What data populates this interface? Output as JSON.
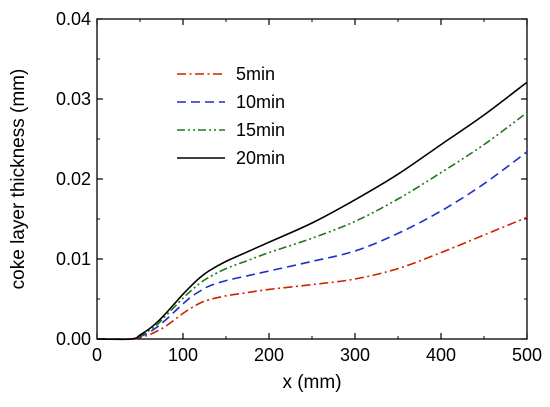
{
  "chart_data": {
    "type": "line",
    "title": "",
    "xlabel": "x (mm)",
    "ylabel": "coke layer thickness (mm)",
    "xlim": [
      0,
      500
    ],
    "ylim": [
      0,
      0.04
    ],
    "xticks": [
      0,
      100,
      200,
      300,
      400,
      500
    ],
    "xtick_labels": [
      "0",
      "100",
      "200",
      "300",
      "400",
      "500"
    ],
    "yticks": [
      0,
      0.01,
      0.02,
      0.03,
      0.04
    ],
    "ytick_labels": [
      "0.00",
      "0.01",
      "0.02",
      "0.03",
      "0.04"
    ],
    "grid": false,
    "legend_position": "top-left",
    "series": [
      {
        "name": "5min",
        "color": "#cc2200",
        "dash": "dash-dot",
        "x": [
          0,
          40,
          50,
          60,
          70,
          80,
          90,
          100,
          110,
          120,
          130,
          150,
          175,
          200,
          250,
          300,
          350,
          400,
          450,
          500
        ],
        "y": [
          0,
          0,
          0.0002,
          0.0005,
          0.001,
          0.0016,
          0.0024,
          0.0032,
          0.0039,
          0.0045,
          0.0049,
          0.0054,
          0.0058,
          0.0062,
          0.0068,
          0.0075,
          0.0088,
          0.0108,
          0.013,
          0.0152
        ]
      },
      {
        "name": "10min",
        "color": "#1a2fcc",
        "dash": "dash",
        "x": [
          0,
          40,
          50,
          60,
          70,
          80,
          90,
          100,
          110,
          120,
          130,
          150,
          175,
          200,
          250,
          300,
          350,
          400,
          450,
          500
        ],
        "y": [
          0,
          0,
          0.0003,
          0.0008,
          0.0015,
          0.0024,
          0.0034,
          0.0044,
          0.0053,
          0.006,
          0.0066,
          0.0073,
          0.0079,
          0.0085,
          0.0097,
          0.011,
          0.0132,
          0.016,
          0.0194,
          0.0234
        ]
      },
      {
        "name": "15min",
        "color": "#1a7a1a",
        "dash": "dash-dot-dot",
        "x": [
          0,
          40,
          50,
          60,
          70,
          80,
          90,
          100,
          110,
          120,
          130,
          150,
          175,
          200,
          250,
          300,
          350,
          400,
          450,
          500
        ],
        "y": [
          0,
          0,
          0.0004,
          0.001,
          0.0018,
          0.0029,
          0.004,
          0.0051,
          0.0061,
          0.007,
          0.0077,
          0.0088,
          0.0098,
          0.0108,
          0.0126,
          0.0147,
          0.0175,
          0.0208,
          0.0243,
          0.0283
        ]
      },
      {
        "name": "20min",
        "color": "#000000",
        "dash": "solid",
        "x": [
          0,
          40,
          50,
          60,
          70,
          80,
          90,
          100,
          110,
          120,
          130,
          150,
          175,
          200,
          250,
          300,
          350,
          400,
          450,
          500
        ],
        "y": [
          0,
          0,
          0.0005,
          0.0012,
          0.0021,
          0.0032,
          0.0044,
          0.0056,
          0.0067,
          0.0077,
          0.0085,
          0.0097,
          0.0109,
          0.0121,
          0.0145,
          0.0174,
          0.0206,
          0.0243,
          0.028,
          0.0321
        ]
      }
    ]
  }
}
